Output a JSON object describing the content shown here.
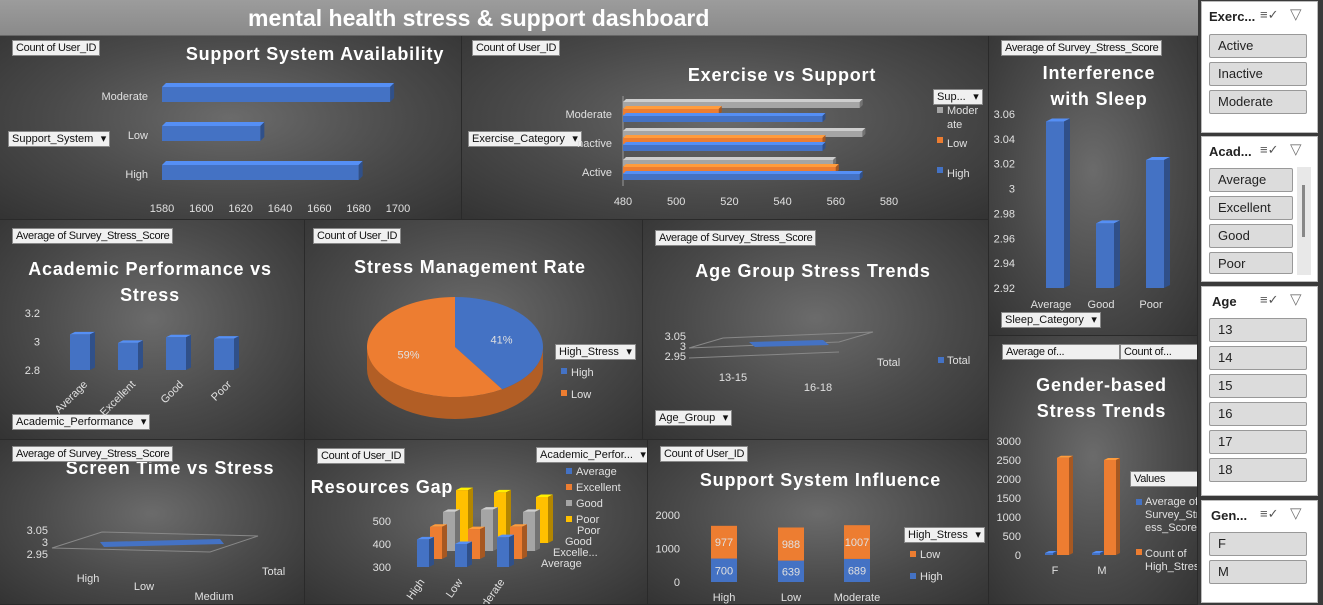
{
  "dashboard_title": "mental health stress & support dashboard",
  "colors": {
    "blue": "#4472c4",
    "orange": "#ed7d31",
    "gray": "#a5a5a5",
    "gold": "#ffc000"
  },
  "chart_data": [
    {
      "id": "support_avail",
      "type": "bar",
      "title": "Support System Availability",
      "field_tag": "Count of User_ID",
      "filter": "Support_System",
      "categories": [
        "Moderate",
        "Low",
        "High"
      ],
      "values": [
        1696,
        1630,
        1680
      ],
      "xticks": [
        "1580",
        "1600",
        "1620",
        "1640",
        "1660",
        "1680",
        "1700"
      ],
      "xlim": [
        1580,
        1700
      ]
    },
    {
      "id": "exercise_support",
      "type": "bar",
      "title": "Exercise vs Support",
      "field_tag": "Count of User_ID",
      "filter": "Exercise_Category",
      "legend_filter": "Sup...",
      "categories": [
        "Moderate",
        "Inactive",
        "Active"
      ],
      "legend": [
        "Moder ate",
        "Low",
        "High"
      ],
      "series": [
        {
          "name": "Moderate",
          "values": [
            569,
            570,
            559
          ]
        },
        {
          "name": "Low",
          "values": [
            516,
            555,
            560
          ]
        },
        {
          "name": "High",
          "values": [
            555,
            555,
            569
          ]
        }
      ],
      "category_labels": [
        "Moderate",
        "nactive",
        "Active"
      ],
      "xticks": [
        "480",
        "500",
        "520",
        "540",
        "560",
        "580"
      ],
      "xlim": [
        480,
        580
      ]
    },
    {
      "id": "interference_sleep",
      "type": "bar",
      "title": "Interference with Sleep",
      "field_tag": "Average of Survey_Stress_Score",
      "filter": "Sleep_Category",
      "categories": [
        "Average",
        "Good",
        "Poor"
      ],
      "values": [
        3.054,
        2.972,
        3.023
      ],
      "yticks": [
        "3.06",
        "3.04",
        "3.02",
        "3",
        "2.98",
        "2.96",
        "2.94",
        "2.92"
      ],
      "ylim": [
        2.92,
        3.06
      ]
    },
    {
      "id": "academic_stress",
      "type": "bar",
      "title": "Academic Performance vs Stress",
      "field_tag": "Average of Survey_Stress_Score",
      "filter": "Academic_Performance",
      "categories": [
        "Average",
        "Excellent",
        "Good",
        "Poor"
      ],
      "values": [
        3.05,
        2.99,
        3.03,
        3.02
      ],
      "yticks": [
        "3.2",
        "3",
        "2.8"
      ],
      "ylim": [
        2.8,
        3.2
      ]
    },
    {
      "id": "stress_mgmt",
      "type": "pie",
      "title": "Stress Management Rate",
      "field_tag": "Count of User_ID",
      "legend_filter": "High_Stress",
      "categories": [
        "High",
        "Low"
      ],
      "values": [
        41,
        59
      ],
      "labels": [
        "41%",
        "59%"
      ]
    },
    {
      "id": "age_trends",
      "type": "line",
      "title": "Age Group Stress Trends",
      "field_tag": "Average of Survey_Stress_Score",
      "filter": "Age_Group",
      "categories": [
        "13-15",
        "16-18"
      ],
      "values": [
        3.0,
        3.0
      ],
      "series_label": "Total",
      "legend": [
        "Total"
      ],
      "yticks": [
        "3.05",
        "3",
        "2.95"
      ]
    },
    {
      "id": "gender_trends",
      "type": "bar",
      "title": "Gender-based Stress Trends",
      "field_tags": [
        "Average of...",
        "Count of..."
      ],
      "legend_title": "Values",
      "categories": [
        "F",
        "M"
      ],
      "series": [
        {
          "name": "Average of Survey_Stress_Score",
          "values": [
            3.0,
            3.0
          ]
        },
        {
          "name": "Count of High_Stress",
          "values": [
            2560,
            2500
          ]
        }
      ],
      "legend": [
        "Average of Survey_Str ess_Score",
        "Count of High_Stress"
      ],
      "yticks": [
        "3000",
        "2500",
        "2000",
        "1500",
        "1000",
        "500",
        "0"
      ],
      "ylim": [
        0,
        3000
      ]
    },
    {
      "id": "screen_time",
      "type": "line",
      "title": "Screen Time vs Stress",
      "field_tag": "Average of Survey_Stress_Score",
      "categories": [
        "High",
        "Low",
        "Medium"
      ],
      "values": [
        3.0,
        2.99,
        3.0
      ],
      "series_label": "Total",
      "yticks": [
        "3.05",
        "3",
        "2.95"
      ]
    },
    {
      "id": "resources_gap",
      "type": "bar",
      "title": "Resources Gap",
      "field_tag": "Count of User_ID",
      "legend_filter": "Academic_Perfor...",
      "categories": [
        "High",
        "Low",
        "Moderate"
      ],
      "series": [
        {
          "name": "Average",
          "values": [
            420,
            400,
            430
          ]
        },
        {
          "name": "Excellent",
          "values": [
            440,
            430,
            440
          ]
        },
        {
          "name": "Good",
          "values": [
            470,
            480,
            470
          ]
        },
        {
          "name": "Poor",
          "values": [
            530,
            520,
            500
          ]
        }
      ],
      "legend": [
        "Average",
        "Excellent",
        "Good",
        "Poor"
      ],
      "depth_labels": [
        "Poor",
        "Good",
        "Excelle...",
        "Average"
      ],
      "yticks": [
        "500",
        "400",
        "300"
      ]
    },
    {
      "id": "support_influence",
      "type": "bar",
      "title": "Support System Influence",
      "field_tag": "Count of User_ID",
      "legend_filter": "High_Stress",
      "categories": [
        "High",
        "Low",
        "Moderate"
      ],
      "series": [
        {
          "name": "High",
          "values": [
            700,
            639,
            689
          ]
        },
        {
          "name": "Low",
          "values": [
            977,
            988,
            1007
          ]
        }
      ],
      "legend": [
        "Low",
        "High"
      ],
      "yticks": [
        "2000",
        "1000",
        "0"
      ],
      "ylim": [
        0,
        2000
      ]
    }
  ],
  "slicers": [
    {
      "name": "Exerc...",
      "items": [
        "Active",
        "Inactive",
        "Moderate"
      ]
    },
    {
      "name": "Acad...",
      "items": [
        "Average",
        "Excellent",
        "Good",
        "Poor"
      ]
    },
    {
      "name": "Age",
      "items": [
        "13",
        "14",
        "15",
        "16",
        "17",
        "18"
      ]
    },
    {
      "name": "Gen...",
      "items": [
        "F",
        "M"
      ]
    }
  ]
}
